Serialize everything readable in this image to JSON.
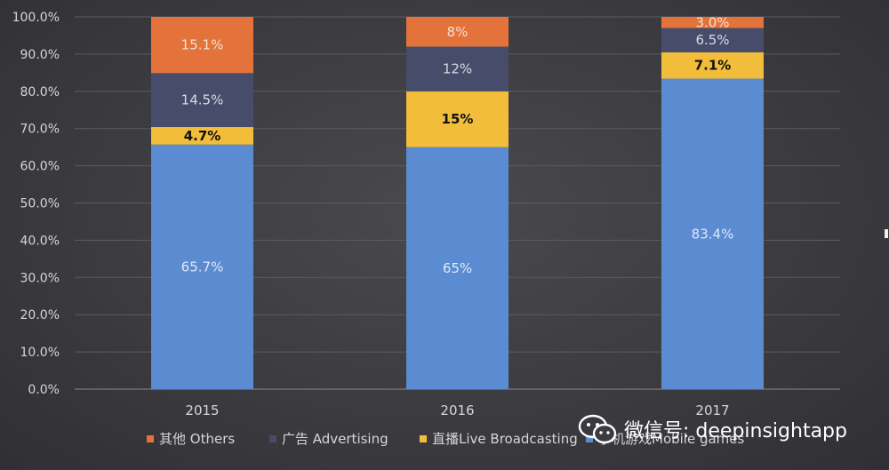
{
  "chart_data": {
    "type": "bar",
    "stacked": true,
    "categories": [
      "2015",
      "2016",
      "2017"
    ],
    "series": [
      {
        "name": "手机游戏Mobile games",
        "color": "#5b8bd1",
        "values": [
          65.7,
          65,
          83.4
        ],
        "labels": [
          "65.7%",
          "65%",
          "83.4%"
        ],
        "label_color": "#dfe8f6",
        "label_bold": false
      },
      {
        "name": "直播Live Broadcasting",
        "color": "#f2bd3b",
        "values": [
          4.7,
          15,
          7.1
        ],
        "labels": [
          "4.7%",
          "15%",
          "7.1%"
        ],
        "label_color": "#111111",
        "label_bold": true
      },
      {
        "name": "广告 Advertising",
        "color": "#474c6a",
        "values": [
          14.5,
          12,
          6.5
        ],
        "labels": [
          "14.5%",
          "12%",
          "6.5%"
        ],
        "label_color": "#d9d9e6",
        "label_bold": false
      },
      {
        "name": "其他 Others",
        "color": "#e3733b",
        "values": [
          15.1,
          8,
          3.0
        ],
        "labels": [
          "15.1%",
          "8%",
          "3.0%"
        ],
        "label_color": "#f6e1d3",
        "label_bold": false
      }
    ],
    "legend_order": [
      3,
      2,
      1,
      0
    ],
    "y_ticks": [
      "0.0%",
      "10.0%",
      "20.0%",
      "30.0%",
      "40.0%",
      "50.0%",
      "60.0%",
      "70.0%",
      "80.0%",
      "90.0%",
      "100.0%"
    ],
    "ylim": [
      0,
      100
    ],
    "grid": true,
    "legend_position": "bottom"
  },
  "watermark": {
    "text": "微信号: deepinsightapp",
    "icon": "wechat-icon"
  }
}
